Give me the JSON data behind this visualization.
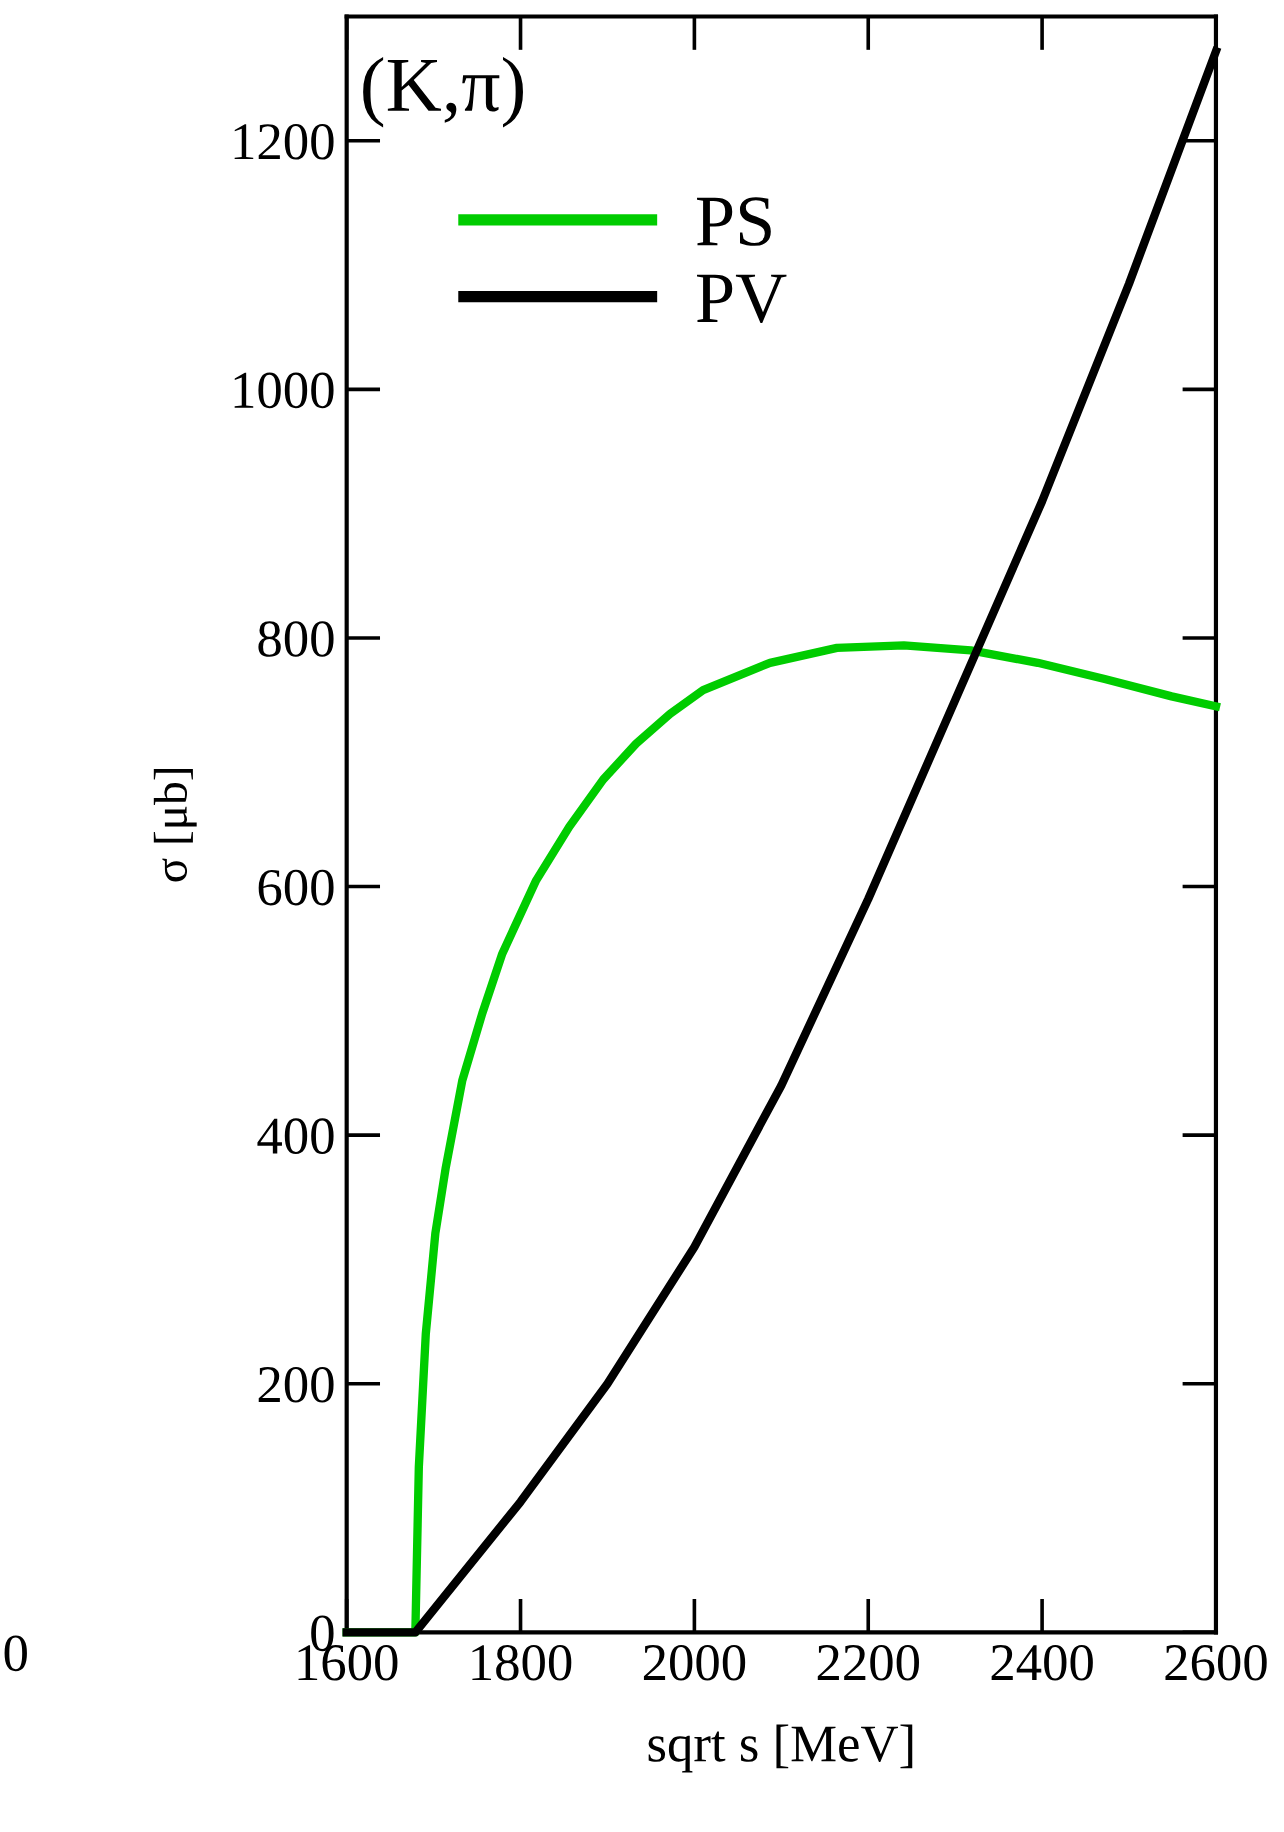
{
  "chart_data": {
    "type": "line",
    "xlabel": "sqrt s [MeV]",
    "ylabel": "σ [μb]",
    "annotations": [
      "(K,π)",
      "0"
    ],
    "xlim": [
      1600,
      2600
    ],
    "xticks": [
      1600,
      1800,
      2000,
      2200,
      2400,
      2600
    ],
    "ylim": [
      0,
      1300
    ],
    "yticks": [
      0,
      200,
      400,
      600,
      800,
      1000,
      1200
    ],
    "grid": false,
    "legend": "top left",
    "marker": "none",
    "line_style": "solid",
    "series": [
      {
        "name": "PS",
        "color": "#00cc00",
        "x": [
          1600,
          1679,
          1683,
          1691,
          1702,
          1714,
          1733,
          1756,
          1779,
          1818,
          1856,
          1895,
          1933,
          1972,
          2010,
          2087,
          2164,
          2241,
          2318,
          2395,
          2472,
          2549,
          2600
        ],
        "values": [
          0,
          0,
          133,
          240,
          321,
          374,
          444,
          498,
          546,
          605,
          648,
          686,
          715,
          739,
          758,
          780,
          792,
          794,
          790,
          780,
          767,
          753,
          745
        ]
      },
      {
        "name": "PV",
        "color": "#000000",
        "x": [
          1600,
          1679,
          1800,
          1900,
          2000,
          2100,
          2200,
          2300,
          2325,
          2400,
          2500,
          2600
        ],
        "values": [
          0,
          0,
          105,
          200,
          310,
          440,
          590,
          750,
          790,
          910,
          1085,
          1272
        ]
      }
    ]
  }
}
